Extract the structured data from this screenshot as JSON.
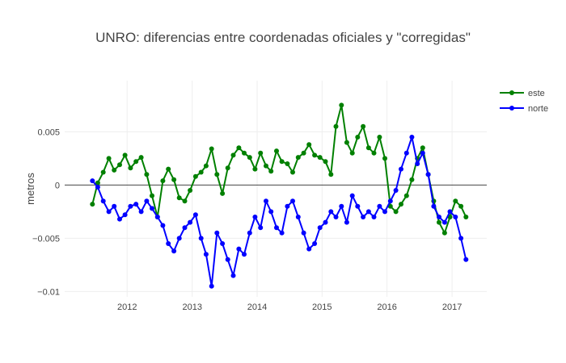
{
  "chart_data": {
    "type": "line",
    "title": "UNRO: diferencias entre coordenadas oficiales y \"corregidas\"",
    "xlabel": "",
    "ylabel": "metros",
    "x_range": [
      "2011-01-15",
      "2017-07-15"
    ],
    "ylim": [
      -0.0105,
      0.0098
    ],
    "x_tick_labels": [
      {
        "date": "2012-01-01",
        "label": "2012"
      },
      {
        "date": "2013-01-01",
        "label": "2013"
      },
      {
        "date": "2014-01-01",
        "label": "2014"
      },
      {
        "date": "2015-01-01",
        "label": "2015"
      },
      {
        "date": "2016-01-01",
        "label": "2016"
      },
      {
        "date": "2017-01-01",
        "label": "2017"
      }
    ],
    "y_ticks": [
      {
        "value": 0.005,
        "label": "0.005"
      },
      {
        "value": 0,
        "label": "0"
      },
      {
        "value": -0.005,
        "label": "−0.005"
      },
      {
        "value": -0.01,
        "label": "−0.01"
      }
    ],
    "grid": true,
    "zero_line": true,
    "legend_position": "top-right",
    "series": [
      {
        "name": "este",
        "color": "#008000",
        "points": [
          [
            "2011-06-20",
            -0.0018
          ],
          [
            "2011-07-20",
            0.0002
          ],
          [
            "2011-08-20",
            0.0012
          ],
          [
            "2011-09-20",
            0.0025
          ],
          [
            "2011-10-20",
            0.0014
          ],
          [
            "2011-11-20",
            0.0019
          ],
          [
            "2011-12-20",
            0.0028
          ],
          [
            "2012-01-20",
            0.0016
          ],
          [
            "2012-02-20",
            0.0022
          ],
          [
            "2012-03-20",
            0.0026
          ],
          [
            "2012-04-20",
            0.001
          ],
          [
            "2012-05-20",
            -0.001
          ],
          [
            "2012-06-20",
            -0.003
          ],
          [
            "2012-07-20",
            0.0004
          ],
          [
            "2012-08-20",
            0.0015
          ],
          [
            "2012-09-20",
            0.0005
          ],
          [
            "2012-10-20",
            -0.0012
          ],
          [
            "2012-11-20",
            -0.0015
          ],
          [
            "2012-12-20",
            -0.0005
          ],
          [
            "2013-01-20",
            0.0008
          ],
          [
            "2013-02-20",
            0.0012
          ],
          [
            "2013-03-20",
            0.0018
          ],
          [
            "2013-04-20",
            0.0034
          ],
          [
            "2013-05-20",
            0.001
          ],
          [
            "2013-06-20",
            -0.0008
          ],
          [
            "2013-07-20",
            0.0016
          ],
          [
            "2013-08-20",
            0.0028
          ],
          [
            "2013-09-20",
            0.0035
          ],
          [
            "2013-10-20",
            0.003
          ],
          [
            "2013-11-20",
            0.0026
          ],
          [
            "2013-12-20",
            0.0015
          ],
          [
            "2014-01-20",
            0.003
          ],
          [
            "2014-02-20",
            0.0018
          ],
          [
            "2014-03-20",
            0.0013
          ],
          [
            "2014-04-20",
            0.0032
          ],
          [
            "2014-05-20",
            0.0022
          ],
          [
            "2014-06-20",
            0.002
          ],
          [
            "2014-07-20",
            0.0012
          ],
          [
            "2014-08-20",
            0.0026
          ],
          [
            "2014-09-20",
            0.003
          ],
          [
            "2014-10-20",
            0.0038
          ],
          [
            "2014-11-20",
            0.0028
          ],
          [
            "2014-12-20",
            0.0026
          ],
          [
            "2015-01-20",
            0.0022
          ],
          [
            "2015-02-20",
            0.001
          ],
          [
            "2015-03-20",
            0.0055
          ],
          [
            "2015-04-20",
            0.0075
          ],
          [
            "2015-05-20",
            0.004
          ],
          [
            "2015-06-20",
            0.003
          ],
          [
            "2015-07-20",
            0.0045
          ],
          [
            "2015-08-20",
            0.0055
          ],
          [
            "2015-09-20",
            0.0035
          ],
          [
            "2015-10-20",
            0.003
          ],
          [
            "2015-11-20",
            0.0045
          ],
          [
            "2015-12-20",
            0.0025
          ],
          [
            "2016-01-20",
            -0.002
          ],
          [
            "2016-02-20",
            -0.0025
          ],
          [
            "2016-03-20",
            -0.0018
          ],
          [
            "2016-04-20",
            -0.001
          ],
          [
            "2016-05-20",
            0.0005
          ],
          [
            "2016-06-20",
            0.0025
          ],
          [
            "2016-07-20",
            0.0035
          ],
          [
            "2016-08-20",
            0.001
          ],
          [
            "2016-09-20",
            -0.0015
          ],
          [
            "2016-10-20",
            -0.0035
          ],
          [
            "2016-11-20",
            -0.0045
          ],
          [
            "2016-12-20",
            -0.003
          ],
          [
            "2017-01-20",
            -0.0015
          ],
          [
            "2017-02-20",
            -0.002
          ],
          [
            "2017-03-20",
            -0.003
          ]
        ]
      },
      {
        "name": "norte",
        "color": "#0000ff",
        "points": [
          [
            "2011-06-20",
            0.0004
          ],
          [
            "2011-07-20",
            -0.0002
          ],
          [
            "2011-08-20",
            -0.0015
          ],
          [
            "2011-09-20",
            -0.0025
          ],
          [
            "2011-10-20",
            -0.002
          ],
          [
            "2011-11-20",
            -0.0032
          ],
          [
            "2011-12-20",
            -0.0028
          ],
          [
            "2012-01-20",
            -0.002
          ],
          [
            "2012-02-20",
            -0.0018
          ],
          [
            "2012-03-20",
            -0.0025
          ],
          [
            "2012-04-20",
            -0.0015
          ],
          [
            "2012-05-20",
            -0.0022
          ],
          [
            "2012-06-20",
            -0.003
          ],
          [
            "2012-07-20",
            -0.0038
          ],
          [
            "2012-08-20",
            -0.0055
          ],
          [
            "2012-09-20",
            -0.0062
          ],
          [
            "2012-10-20",
            -0.005
          ],
          [
            "2012-11-20",
            -0.004
          ],
          [
            "2012-12-20",
            -0.0035
          ],
          [
            "2013-01-20",
            -0.0028
          ],
          [
            "2013-02-20",
            -0.005
          ],
          [
            "2013-03-20",
            -0.0065
          ],
          [
            "2013-04-20",
            -0.0095
          ],
          [
            "2013-05-20",
            -0.0045
          ],
          [
            "2013-06-20",
            -0.0055
          ],
          [
            "2013-07-20",
            -0.007
          ],
          [
            "2013-08-20",
            -0.0085
          ],
          [
            "2013-09-20",
            -0.006
          ],
          [
            "2013-10-20",
            -0.0065
          ],
          [
            "2013-11-20",
            -0.0045
          ],
          [
            "2013-12-20",
            -0.003
          ],
          [
            "2014-01-20",
            -0.004
          ],
          [
            "2014-02-20",
            -0.0015
          ],
          [
            "2014-03-20",
            -0.0025
          ],
          [
            "2014-04-20",
            -0.004
          ],
          [
            "2014-05-20",
            -0.0045
          ],
          [
            "2014-06-20",
            -0.002
          ],
          [
            "2014-07-20",
            -0.0015
          ],
          [
            "2014-08-20",
            -0.003
          ],
          [
            "2014-09-20",
            -0.0045
          ],
          [
            "2014-10-20",
            -0.006
          ],
          [
            "2014-11-20",
            -0.0055
          ],
          [
            "2014-12-20",
            -0.004
          ],
          [
            "2015-01-20",
            -0.0035
          ],
          [
            "2015-02-20",
            -0.0025
          ],
          [
            "2015-03-20",
            -0.003
          ],
          [
            "2015-04-20",
            -0.002
          ],
          [
            "2015-05-20",
            -0.0035
          ],
          [
            "2015-06-20",
            -0.001
          ],
          [
            "2015-07-20",
            -0.002
          ],
          [
            "2015-08-20",
            -0.003
          ],
          [
            "2015-09-20",
            -0.0025
          ],
          [
            "2015-10-20",
            -0.003
          ],
          [
            "2015-11-20",
            -0.002
          ],
          [
            "2015-12-20",
            -0.0025
          ],
          [
            "2016-01-20",
            -0.0015
          ],
          [
            "2016-02-20",
            -0.0005
          ],
          [
            "2016-03-20",
            0.0015
          ],
          [
            "2016-04-20",
            0.003
          ],
          [
            "2016-05-20",
            0.0045
          ],
          [
            "2016-06-20",
            0.002
          ],
          [
            "2016-07-20",
            0.003
          ],
          [
            "2016-08-20",
            0.001
          ],
          [
            "2016-09-20",
            -0.002
          ],
          [
            "2016-10-20",
            -0.003
          ],
          [
            "2016-11-20",
            -0.0035
          ],
          [
            "2016-12-20",
            -0.0025
          ],
          [
            "2017-01-20",
            -0.003
          ],
          [
            "2017-02-20",
            -0.005
          ],
          [
            "2017-03-20",
            -0.007
          ]
        ]
      }
    ]
  }
}
